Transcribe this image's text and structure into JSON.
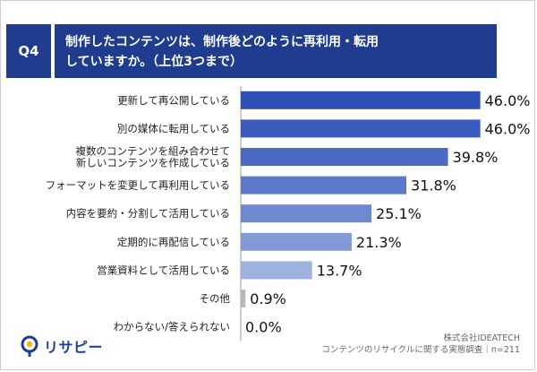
{
  "header": {
    "badge": "Q4",
    "title_line1": "制作したコンテンツは、制作後どのように再利用・転用",
    "title_line2": "していますか。（上位3つまで）"
  },
  "brand": {
    "logo_text": "リサピー"
  },
  "source": {
    "company": "株式会社IDEATECH",
    "survey": "コンテンツのリサイクルに関する実態調査｜n=211"
  },
  "chart_data": {
    "type": "bar",
    "orientation": "horizontal",
    "categories": [
      [
        "更新して再公開している"
      ],
      [
        "別の媒体に転用している"
      ],
      [
        "複数のコンテンツを組み合わせて",
        "新しいコンテンツを作成している"
      ],
      [
        "フォーマットを変更して再利用している"
      ],
      [
        "内容を要約・分割して活用している"
      ],
      [
        "定期的に再配信している"
      ],
      [
        "営業資料として活用している"
      ],
      [
        "その他"
      ],
      [
        "わからない/答えられない"
      ]
    ],
    "values": [
      46.0,
      46.0,
      39.8,
      31.8,
      25.1,
      21.3,
      13.7,
      0.9,
      0.0
    ],
    "value_labels": [
      "46.0%",
      "46.0%",
      "39.8%",
      "31.8%",
      "25.1%",
      "21.3%",
      "13.7%",
      "0.9%",
      "0.0%"
    ],
    "colors": [
      "#2e4fb3",
      "#3a5bbd",
      "#4b6ac4",
      "#5c79cb",
      "#6f89d1",
      "#849ad6",
      "#9fb1df",
      "#b8b8b8",
      "#b8b8b8"
    ],
    "xlim": [
      0,
      55
    ]
  }
}
